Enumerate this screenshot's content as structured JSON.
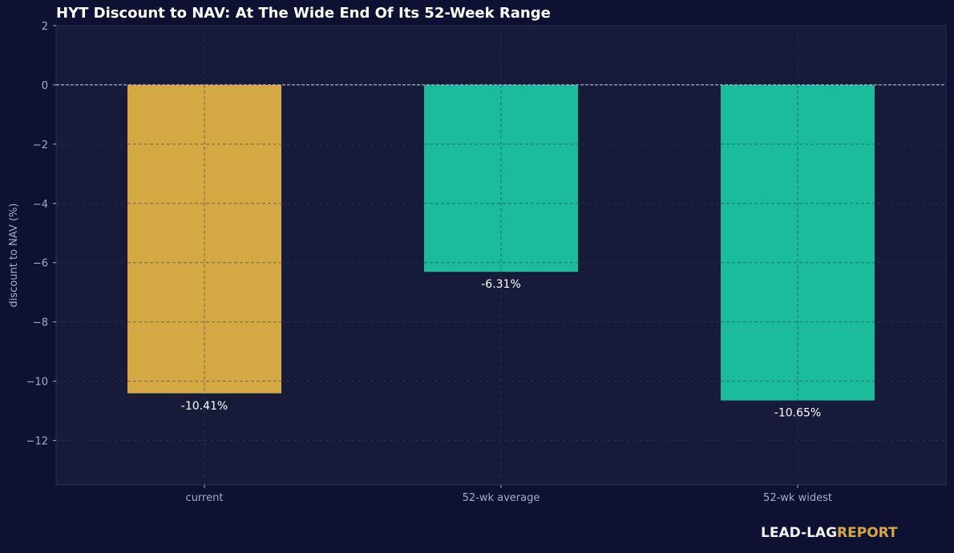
{
  "chart_data": {
    "type": "bar",
    "title": "HYT Discount to NAV: At The Wide End Of Its 52-Week Range",
    "xlabel": "",
    "ylabel": "discount to NAV (%)",
    "categories": [
      "current",
      "52-wk average",
      "52-wk widest"
    ],
    "values": [
      -10.41,
      -6.31,
      -10.65
    ],
    "data_labels": [
      "-10.41%",
      "-6.31%",
      "-10.65%"
    ],
    "bar_colors": [
      "#d4a944",
      "#1abc9c",
      "#1abc9c"
    ],
    "ylim": [
      -13.5,
      2
    ],
    "yticks": [
      2,
      0,
      -2,
      -4,
      -6,
      -8,
      -10,
      -12
    ],
    "ytick_labels": [
      "2",
      "0",
      "−2",
      "−4",
      "−6",
      "−8",
      "−10",
      "−12"
    ],
    "reference_line_y": 0,
    "grid": true,
    "legend": "none"
  },
  "colors": {
    "background": "#0e1131",
    "plot_background": "#151b38",
    "text": "#ffffff",
    "tick_text": "#a6acc5",
    "accent_gold": "#d4a944",
    "accent_teal": "#1abc9c"
  },
  "watermark": {
    "part1": "LEAD-LAG",
    "part2": "REPORT"
  }
}
